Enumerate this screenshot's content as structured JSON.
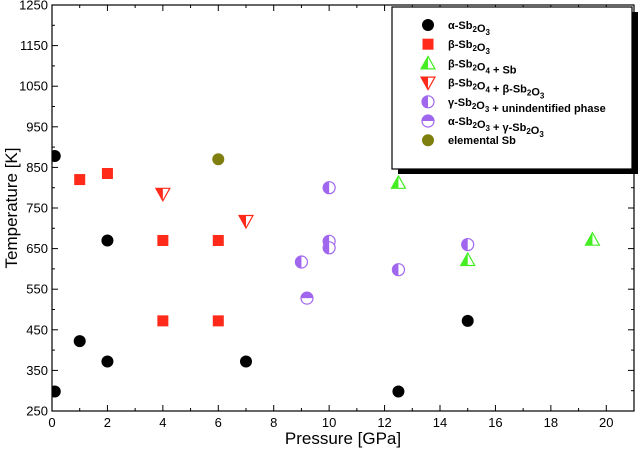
{
  "chart_data": {
    "type": "scatter",
    "xlabel": "Pressure [GPa]",
    "ylabel": "Temperature [K]",
    "xlim": [
      0,
      21
    ],
    "ylim": [
      250,
      1250
    ],
    "x_ticks": [
      0,
      2,
      4,
      6,
      8,
      10,
      12,
      14,
      16,
      18,
      20
    ],
    "y_ticks": [
      250,
      350,
      450,
      550,
      650,
      750,
      850,
      950,
      1050,
      1150,
      1250
    ],
    "legend_position": "top-right",
    "series": [
      {
        "marker": "circle",
        "color": "#000000",
        "legend": {
          "a": "α-Sb",
          "s1": "2",
          "b": "O",
          "s2": "3"
        },
        "points": [
          [
            0.1,
            878
          ],
          [
            2,
            670
          ],
          [
            1,
            422
          ],
          [
            2,
            372
          ],
          [
            0.1,
            298
          ],
          [
            7,
            372
          ],
          [
            12.5,
            298
          ],
          [
            15,
            472
          ]
        ]
      },
      {
        "marker": "square",
        "color": "#ff2a1a",
        "legend": {
          "a": "β-Sb",
          "s1": "2",
          "b": "O",
          "s2": "3"
        },
        "points": [
          [
            1,
            820
          ],
          [
            2,
            835
          ],
          [
            4,
            670
          ],
          [
            6,
            670
          ],
          [
            4,
            472
          ],
          [
            6,
            472
          ]
        ]
      },
      {
        "marker": "triangle-up-half",
        "color": "#44ee22",
        "legend": {
          "a": "β-Sb",
          "s1": "2",
          "b": "O",
          "s2": "4",
          "c": " + Sb"
        },
        "points": [
          [
            12.5,
            812
          ],
          [
            15,
            622
          ],
          [
            19.5,
            672
          ]
        ]
      },
      {
        "marker": "triangle-down-half",
        "color": "#ff2a1a",
        "legend": {
          "a": "β-Sb",
          "s1": "2",
          "b": "O",
          "s2": "4",
          "c": " + β-Sb",
          "s3": "2",
          "d": "O",
          "s4": "3"
        },
        "points": [
          [
            4,
            785
          ],
          [
            7,
            718
          ]
        ]
      },
      {
        "marker": "circle-half-left",
        "color": "#a066ee",
        "legend": {
          "a": "γ-Sb",
          "s1": "2",
          "b": "O",
          "s2": "3",
          "c": " + unindentified phase"
        },
        "points": [
          [
            10,
            800
          ],
          [
            10,
            668
          ],
          [
            10,
            652
          ],
          [
            9,
            617
          ],
          [
            12.5,
            598
          ],
          [
            15,
            660
          ]
        ]
      },
      {
        "marker": "circle-half-top",
        "color": "#a066ee",
        "legend": {
          "a": "α-Sb",
          "s1": "2",
          "b": "O",
          "s2": "3",
          "c": " + γ-Sb",
          "s3": "2",
          "d": "O",
          "s4": "3"
        },
        "points": [
          [
            9.2,
            528
          ]
        ]
      },
      {
        "marker": "circle",
        "color": "#7f7f10",
        "legend": {
          "a": "elemental Sb"
        },
        "points": [
          [
            6,
            870
          ]
        ]
      }
    ]
  }
}
